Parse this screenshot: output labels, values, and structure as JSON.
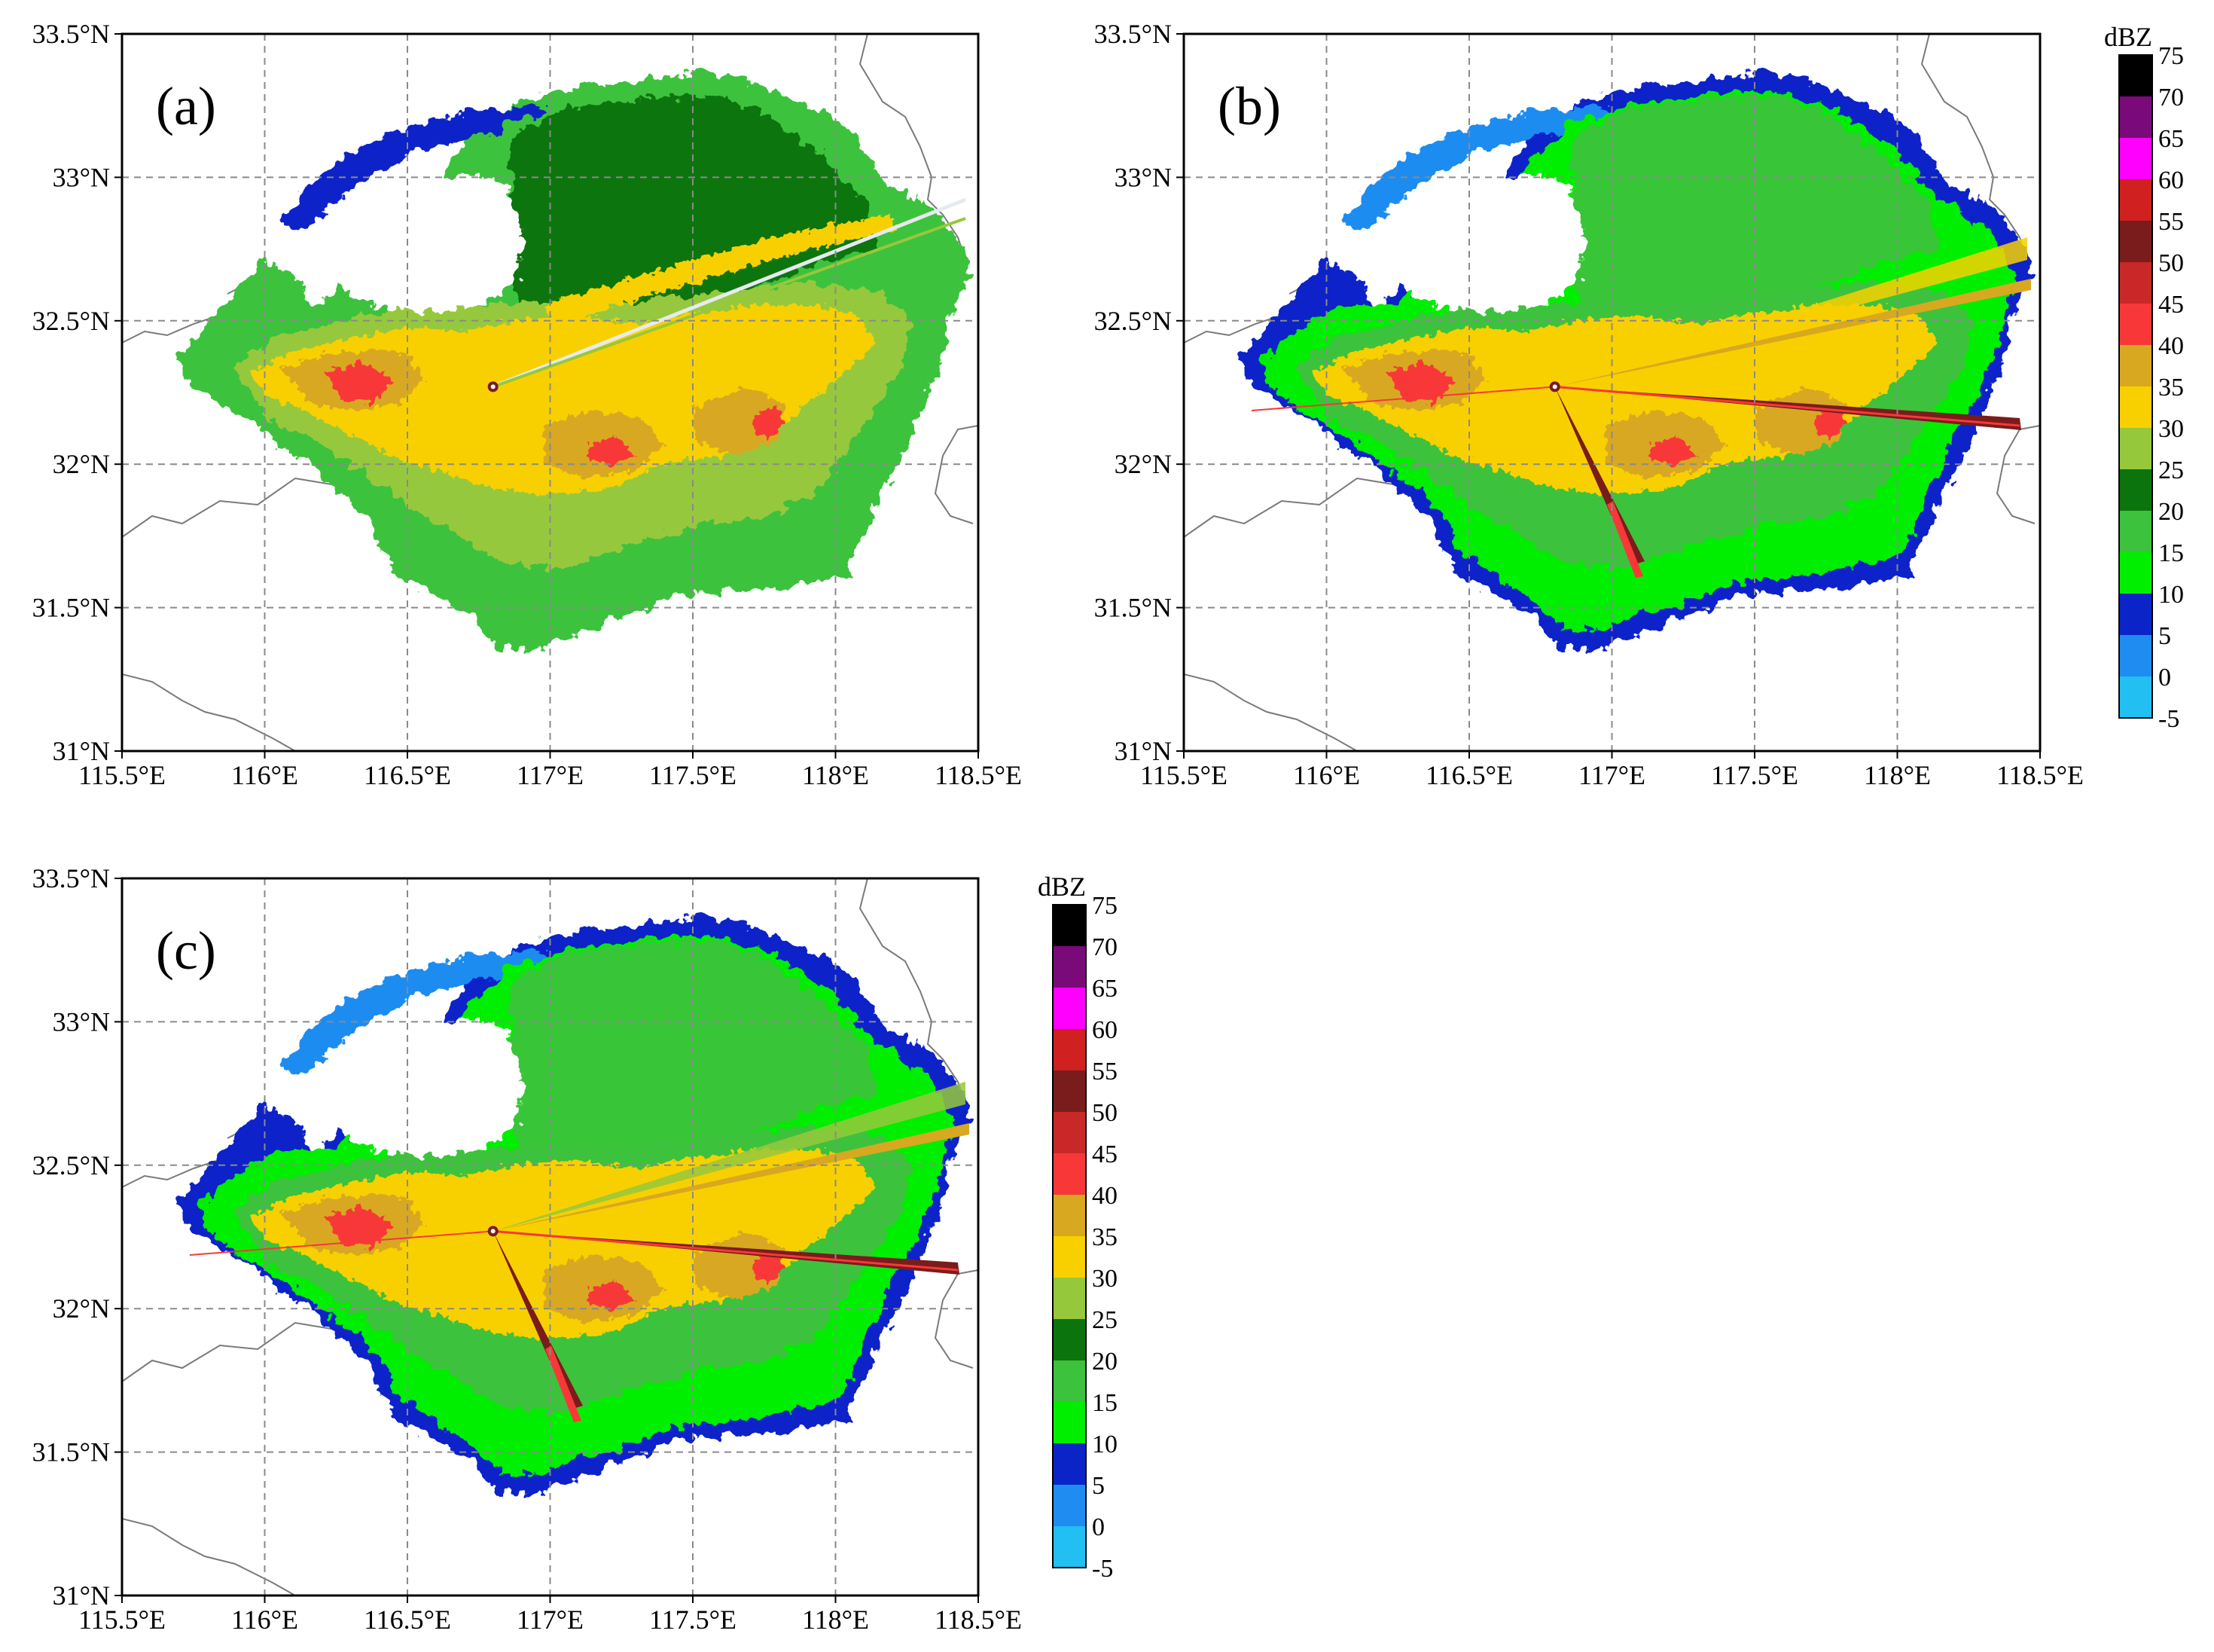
{
  "figure": {
    "panels": [
      {
        "id": "a",
        "label": "(a)",
        "variant": 0
      },
      {
        "id": "b",
        "label": "(b)",
        "variant": 1
      },
      {
        "id": "c",
        "label": "(c)",
        "variant": 2
      }
    ],
    "lon_ticks": [
      "115.5°E",
      "116°E",
      "116.5°E",
      "117°E",
      "117.5°E",
      "118°E",
      "118.5°E"
    ],
    "lat_ticks": [
      "31°N",
      "31.5°N",
      "32°N",
      "32.5°N",
      "33°N",
      "33.5°N"
    ],
    "lon_range": [
      115.5,
      118.5
    ],
    "lat_range": [
      31.0,
      33.5
    ],
    "gridlines": "dashed",
    "radar_site": {
      "lon": 116.8,
      "lat": 32.27
    }
  },
  "colorbar": {
    "unit": "dBZ",
    "levels": [
      "-5",
      "0",
      "5",
      "10",
      "15",
      "20",
      "25",
      "30",
      "35",
      "40",
      "45",
      "50",
      "55",
      "60",
      "65",
      "70",
      "75"
    ],
    "colors": [
      "#21bff2",
      "#1e8cf0",
      "#0b24c8",
      "#00ee00",
      "#3cc23c",
      "#0c740c",
      "#96c83c",
      "#f8d000",
      "#d8a820",
      "#f83838",
      "#c82828",
      "#7a1c1c",
      "#d02020",
      "#ff00ff",
      "#7a0a7a",
      "#000000"
    ]
  }
}
